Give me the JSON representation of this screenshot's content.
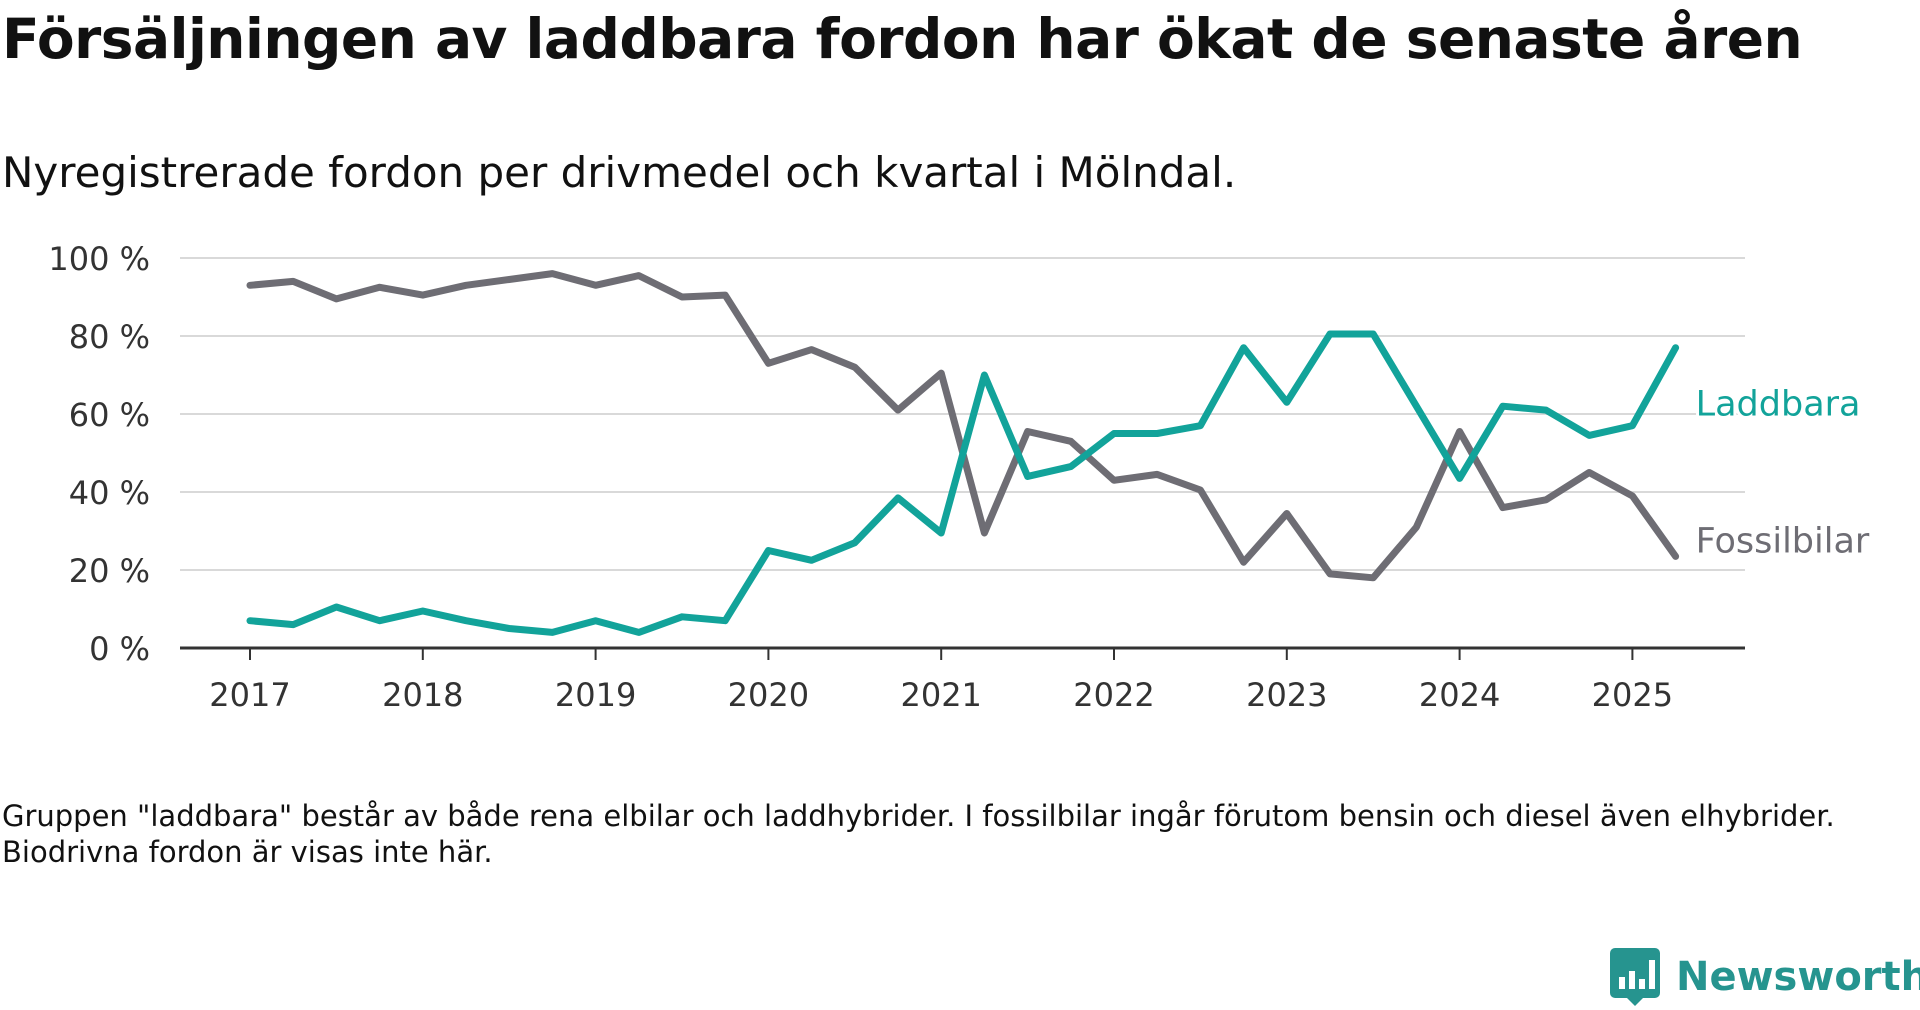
{
  "header": {
    "title": "Försäljningen av laddbara fordon har ökat de senaste åren",
    "subtitle": "Nyregistrerade fordon per drivmedel och kvartal i Mölndal."
  },
  "footnote": "Gruppen \"laddbara\" består av både rena elbilar och laddhybrider. I fossilbilar ingår förutom bensin och diesel även elhybrider. Biodrivna fordon är visas inte här.",
  "brand": {
    "name": "Newsworthy",
    "icon": "bar-chart-icon",
    "color": "#26948f"
  },
  "chart_data": {
    "type": "line",
    "title": "",
    "xlabel": "",
    "ylabel": "",
    "ylim": [
      0,
      100
    ],
    "yticks": [
      0,
      20,
      40,
      60,
      80,
      100
    ],
    "ytick_labels": [
      "0 %",
      "20 %",
      "40 %",
      "60 %",
      "80 %",
      "100 %"
    ],
    "xticks": [
      2017,
      2018,
      2019,
      2020,
      2021,
      2022,
      2023,
      2024,
      2025
    ],
    "xtick_labels": [
      "2017",
      "2018",
      "2019",
      "2020",
      "2021",
      "2022",
      "2023",
      "2024",
      "2025"
    ],
    "grid": true,
    "legend": "direct labels at line ends",
    "x": [
      "2017 Q1",
      "2017 Q2",
      "2017 Q3",
      "2017 Q4",
      "2018 Q1",
      "2018 Q2",
      "2018 Q3",
      "2018 Q4",
      "2019 Q1",
      "2019 Q2",
      "2019 Q3",
      "2019 Q4",
      "2020 Q1",
      "2020 Q2",
      "2020 Q3",
      "2020 Q4",
      "2021 Q1",
      "2021 Q2",
      "2021 Q3",
      "2021 Q4",
      "2022 Q1",
      "2022 Q2",
      "2022 Q3",
      "2022 Q4",
      "2023 Q1",
      "2023 Q2",
      "2023 Q3",
      "2023 Q4",
      "2024 Q1",
      "2024 Q2",
      "2024 Q3",
      "2024 Q4",
      "2025 Q1",
      "2025 Q2"
    ],
    "series": [
      {
        "name": "Laddbara",
        "color": "#12a39a",
        "values": [
          7,
          6,
          10.5,
          7,
          9.5,
          7,
          5,
          4,
          7,
          4,
          8,
          7,
          25,
          22.5,
          27,
          38.5,
          29.5,
          70,
          44,
          46.5,
          55,
          55,
          57,
          77,
          63,
          80.5,
          80.5,
          62,
          43.5,
          62,
          61,
          54.5,
          57,
          77
        ]
      },
      {
        "name": "Fossilbilar",
        "color": "#6e6d74",
        "values": [
          93,
          94,
          89.5,
          92.5,
          90.5,
          93,
          94.5,
          96,
          93,
          95.5,
          90,
          90.5,
          73,
          76.5,
          72,
          61,
          70.5,
          29.5,
          55.5,
          53,
          43,
          44.5,
          40.5,
          22,
          34.5,
          19,
          18,
          31,
          55.5,
          36,
          38,
          45,
          39,
          23.5
        ]
      }
    ]
  }
}
